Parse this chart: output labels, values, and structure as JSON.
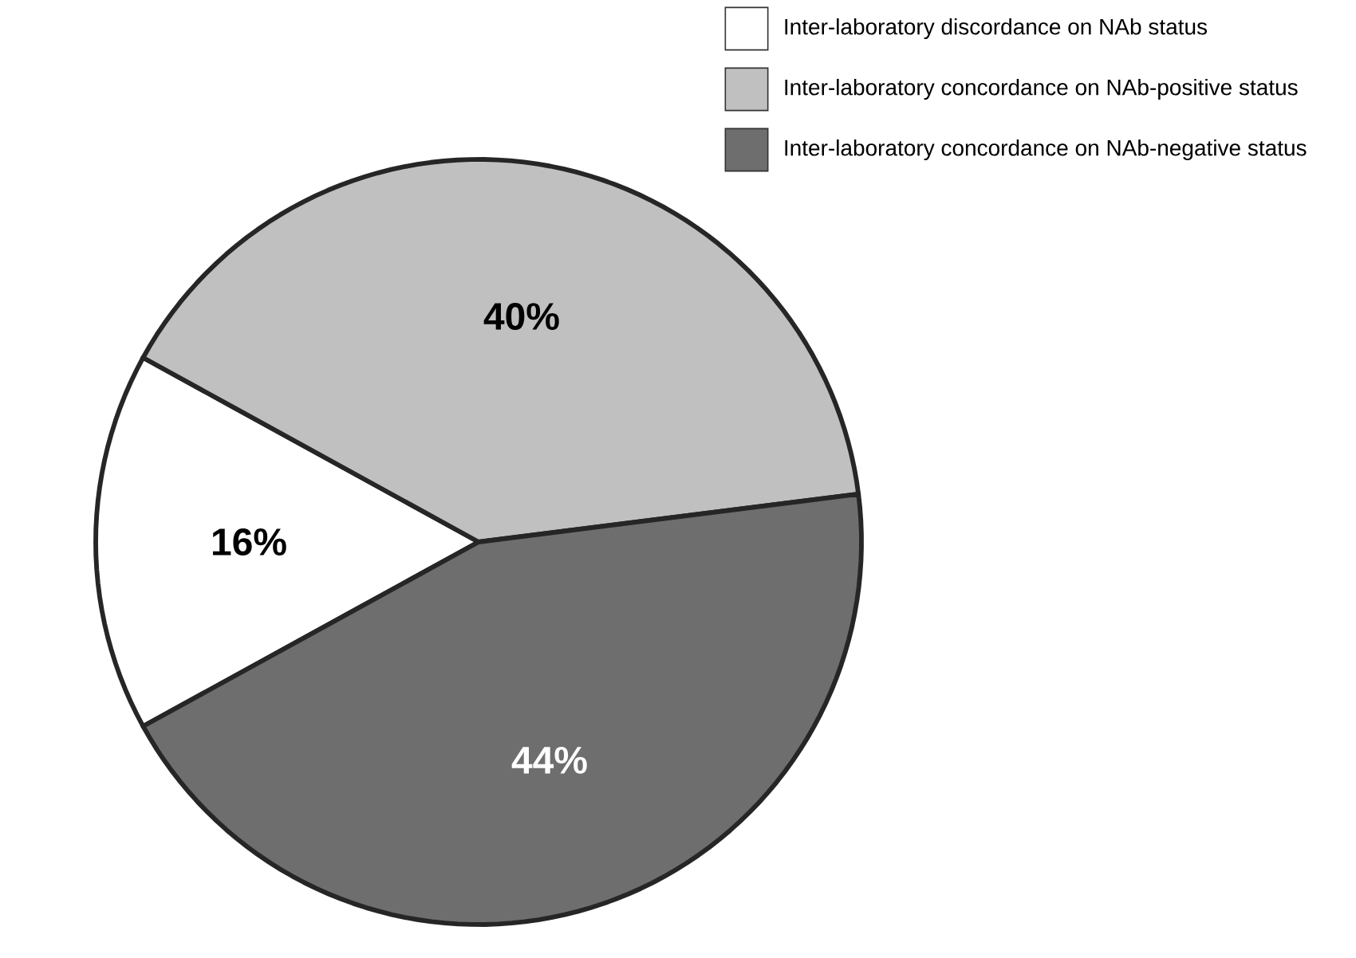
{
  "chart_data": {
    "type": "pie",
    "categories": [
      "Inter-laboratory discordance on NAb status",
      "Inter-laboratory concordance on NAb-positive status",
      "Inter-laboratory concordance on NAb-negative status"
    ],
    "values": [
      16,
      40,
      44
    ],
    "colors": [
      "#ffffff",
      "#c0c0c0",
      "#6e6e6e"
    ],
    "value_labels": [
      "16%",
      "40%",
      "44%"
    ],
    "legend": "top right"
  }
}
